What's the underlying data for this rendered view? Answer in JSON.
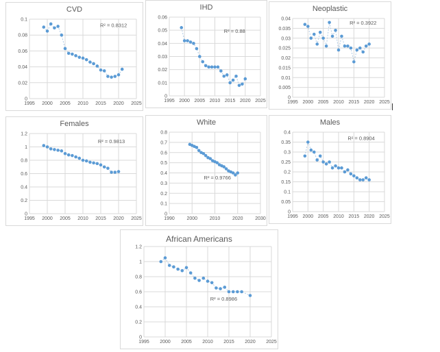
{
  "chart_data": [
    {
      "type": "scatter",
      "title": "CVD",
      "r2_label": "R² = 0.8312",
      "r2_pos": [
        0.66,
        0.1
      ],
      "xlim": [
        1995,
        2025
      ],
      "xticks": [
        1995,
        2000,
        2005,
        2010,
        2015,
        2020,
        2025
      ],
      "ylim": [
        0,
        0.1
      ],
      "yticks": [
        0,
        0.02,
        0.04,
        0.06,
        0.08,
        0.1
      ],
      "x": [
        1999,
        2000,
        2001,
        2002,
        2003,
        2004,
        2005,
        2006,
        2007,
        2008,
        2009,
        2010,
        2011,
        2012,
        2013,
        2014,
        2015,
        2016,
        2017,
        2018,
        2019,
        2020,
        2021
      ],
      "y": [
        0.09,
        0.085,
        0.094,
        0.089,
        0.091,
        0.08,
        0.063,
        0.057,
        0.056,
        0.054,
        0.052,
        0.051,
        0.049,
        0.046,
        0.044,
        0.041,
        0.036,
        0.035,
        0.028,
        0.027,
        0.028,
        0.03,
        0.037
      ]
    },
    {
      "type": "scatter",
      "title": "IHD",
      "r2_label": "R² = 0.88",
      "r2_pos": [
        0.6,
        0.2
      ],
      "xlim": [
        1995,
        2025
      ],
      "xticks": [
        1995,
        2000,
        2005,
        2010,
        2015,
        2020,
        2025
      ],
      "ylim": [
        0,
        0.06
      ],
      "yticks": [
        0,
        0.01,
        0.02,
        0.03,
        0.04,
        0.05,
        0.06
      ],
      "x": [
        1999,
        2000,
        2001,
        2002,
        2003,
        2004,
        2005,
        2006,
        2007,
        2008,
        2009,
        2010,
        2011,
        2012,
        2013,
        2014,
        2015,
        2016,
        2017,
        2018,
        2019,
        2020
      ],
      "y": [
        0.052,
        0.042,
        0.042,
        0.041,
        0.04,
        0.036,
        0.03,
        0.026,
        0.023,
        0.022,
        0.022,
        0.022,
        0.022,
        0.019,
        0.015,
        0.016,
        0.01,
        0.012,
        0.015,
        0.008,
        0.009,
        0.013
      ]
    },
    {
      "type": "scatter",
      "title": "Neoplastic",
      "r2_label": "R² = 0.3922",
      "r2_pos": [
        0.62,
        0.08
      ],
      "xlim": [
        1995,
        2025
      ],
      "xticks": [
        1995,
        2000,
        2005,
        2010,
        2015,
        2020,
        2025
      ],
      "ylim": [
        0,
        0.04
      ],
      "yticks": [
        0,
        0.005,
        0.01,
        0.015,
        0.02,
        0.025,
        0.03,
        0.035,
        0.04
      ],
      "x": [
        1999,
        2000,
        2001,
        2002,
        2003,
        2004,
        2005,
        2006,
        2007,
        2008,
        2009,
        2010,
        2011,
        2012,
        2013,
        2014,
        2015,
        2016,
        2017,
        2018,
        2019,
        2020
      ],
      "y": [
        0.037,
        0.036,
        0.03,
        0.032,
        0.027,
        0.033,
        0.03,
        0.026,
        0.038,
        0.031,
        0.034,
        0.024,
        0.031,
        0.026,
        0.026,
        0.025,
        0.018,
        0.024,
        0.025,
        0.023,
        0.026,
        0.027
      ]
    },
    {
      "type": "scatter",
      "title": "Females",
      "r2_label": "R² = 0.9813",
      "r2_pos": [
        0.64,
        0.12
      ],
      "xlim": [
        1995,
        2025
      ],
      "xticks": [
        1995,
        2000,
        2005,
        2010,
        2015,
        2020,
        2025
      ],
      "ylim": [
        0,
        1.2
      ],
      "yticks": [
        0,
        0.2,
        0.4,
        0.6,
        0.8,
        1,
        1.2
      ],
      "x": [
        1999,
        2000,
        2001,
        2002,
        2003,
        2004,
        2005,
        2006,
        2007,
        2008,
        2009,
        2010,
        2011,
        2012,
        2013,
        2014,
        2015,
        2016,
        2017,
        2018,
        2019,
        2020
      ],
      "y": [
        1.02,
        1.0,
        0.97,
        0.96,
        0.95,
        0.94,
        0.9,
        0.88,
        0.87,
        0.85,
        0.83,
        0.8,
        0.79,
        0.77,
        0.76,
        0.75,
        0.73,
        0.7,
        0.68,
        0.62,
        0.62,
        0.63
      ]
    },
    {
      "type": "scatter",
      "title": "White",
      "r2_label": "R² = 0.9766",
      "r2_pos": [
        0.38,
        0.58
      ],
      "xlim": [
        1990,
        2030
      ],
      "xticks": [
        1990,
        2000,
        2010,
        2020,
        2030
      ],
      "ylim": [
        0,
        0.8
      ],
      "yticks": [
        0,
        0.1,
        0.2,
        0.3,
        0.4,
        0.5,
        0.6,
        0.7,
        0.8
      ],
      "x": [
        1999,
        2000,
        2001,
        2002,
        2003,
        2004,
        2005,
        2006,
        2007,
        2008,
        2009,
        2010,
        2011,
        2012,
        2013,
        2014,
        2015,
        2016,
        2017,
        2018,
        2019,
        2020
      ],
      "y": [
        0.68,
        0.67,
        0.66,
        0.65,
        0.62,
        0.6,
        0.59,
        0.57,
        0.55,
        0.54,
        0.52,
        0.51,
        0.5,
        0.48,
        0.47,
        0.46,
        0.44,
        0.42,
        0.41,
        0.4,
        0.38,
        0.4
      ]
    },
    {
      "type": "scatter",
      "title": "Males",
      "r2_label": "R² = 0.8904",
      "r2_pos": [
        0.6,
        0.1
      ],
      "xlim": [
        1995,
        2025
      ],
      "xticks": [
        1995,
        2000,
        2005,
        2010,
        2015,
        2020,
        2025
      ],
      "ylim": [
        0,
        0.4
      ],
      "yticks": [
        0,
        0.05,
        0.1,
        0.15,
        0.2,
        0.25,
        0.3,
        0.35,
        0.4
      ],
      "x": [
        1999,
        2000,
        2001,
        2002,
        2003,
        2004,
        2005,
        2006,
        2007,
        2008,
        2009,
        2010,
        2011,
        2012,
        2013,
        2014,
        2015,
        2016,
        2017,
        2018,
        2019,
        2020
      ],
      "y": [
        0.28,
        0.35,
        0.31,
        0.3,
        0.26,
        0.28,
        0.25,
        0.24,
        0.25,
        0.22,
        0.23,
        0.22,
        0.22,
        0.2,
        0.21,
        0.19,
        0.18,
        0.17,
        0.16,
        0.16,
        0.17,
        0.16
      ]
    },
    {
      "type": "scatter",
      "title": "African Americans",
      "r2_label": "R² = 0.8986",
      "r2_pos": [
        0.52,
        0.6
      ],
      "xlim": [
        1995,
        2025
      ],
      "xticks": [
        1995,
        2000,
        2005,
        2010,
        2015,
        2020,
        2025
      ],
      "ylim": [
        0,
        1.2
      ],
      "yticks": [
        0,
        0.2,
        0.4,
        0.6,
        0.8,
        1,
        1.2
      ],
      "x": [
        1999,
        2000,
        2001,
        2002,
        2003,
        2004,
        2005,
        2006,
        2007,
        2008,
        2009,
        2010,
        2011,
        2012,
        2013,
        2014,
        2015,
        2016,
        2017,
        2018,
        2020
      ],
      "y": [
        1.0,
        1.05,
        0.95,
        0.93,
        0.9,
        0.88,
        0.92,
        0.85,
        0.78,
        0.75,
        0.78,
        0.74,
        0.72,
        0.65,
        0.64,
        0.66,
        0.6,
        0.6,
        0.6,
        0.6,
        0.55
      ]
    }
  ],
  "style": {
    "marker_color": "#5b9bd5",
    "connector_color": "#aec9e4",
    "grid_color": "#d9d9d9",
    "text_color": "#595959"
  }
}
